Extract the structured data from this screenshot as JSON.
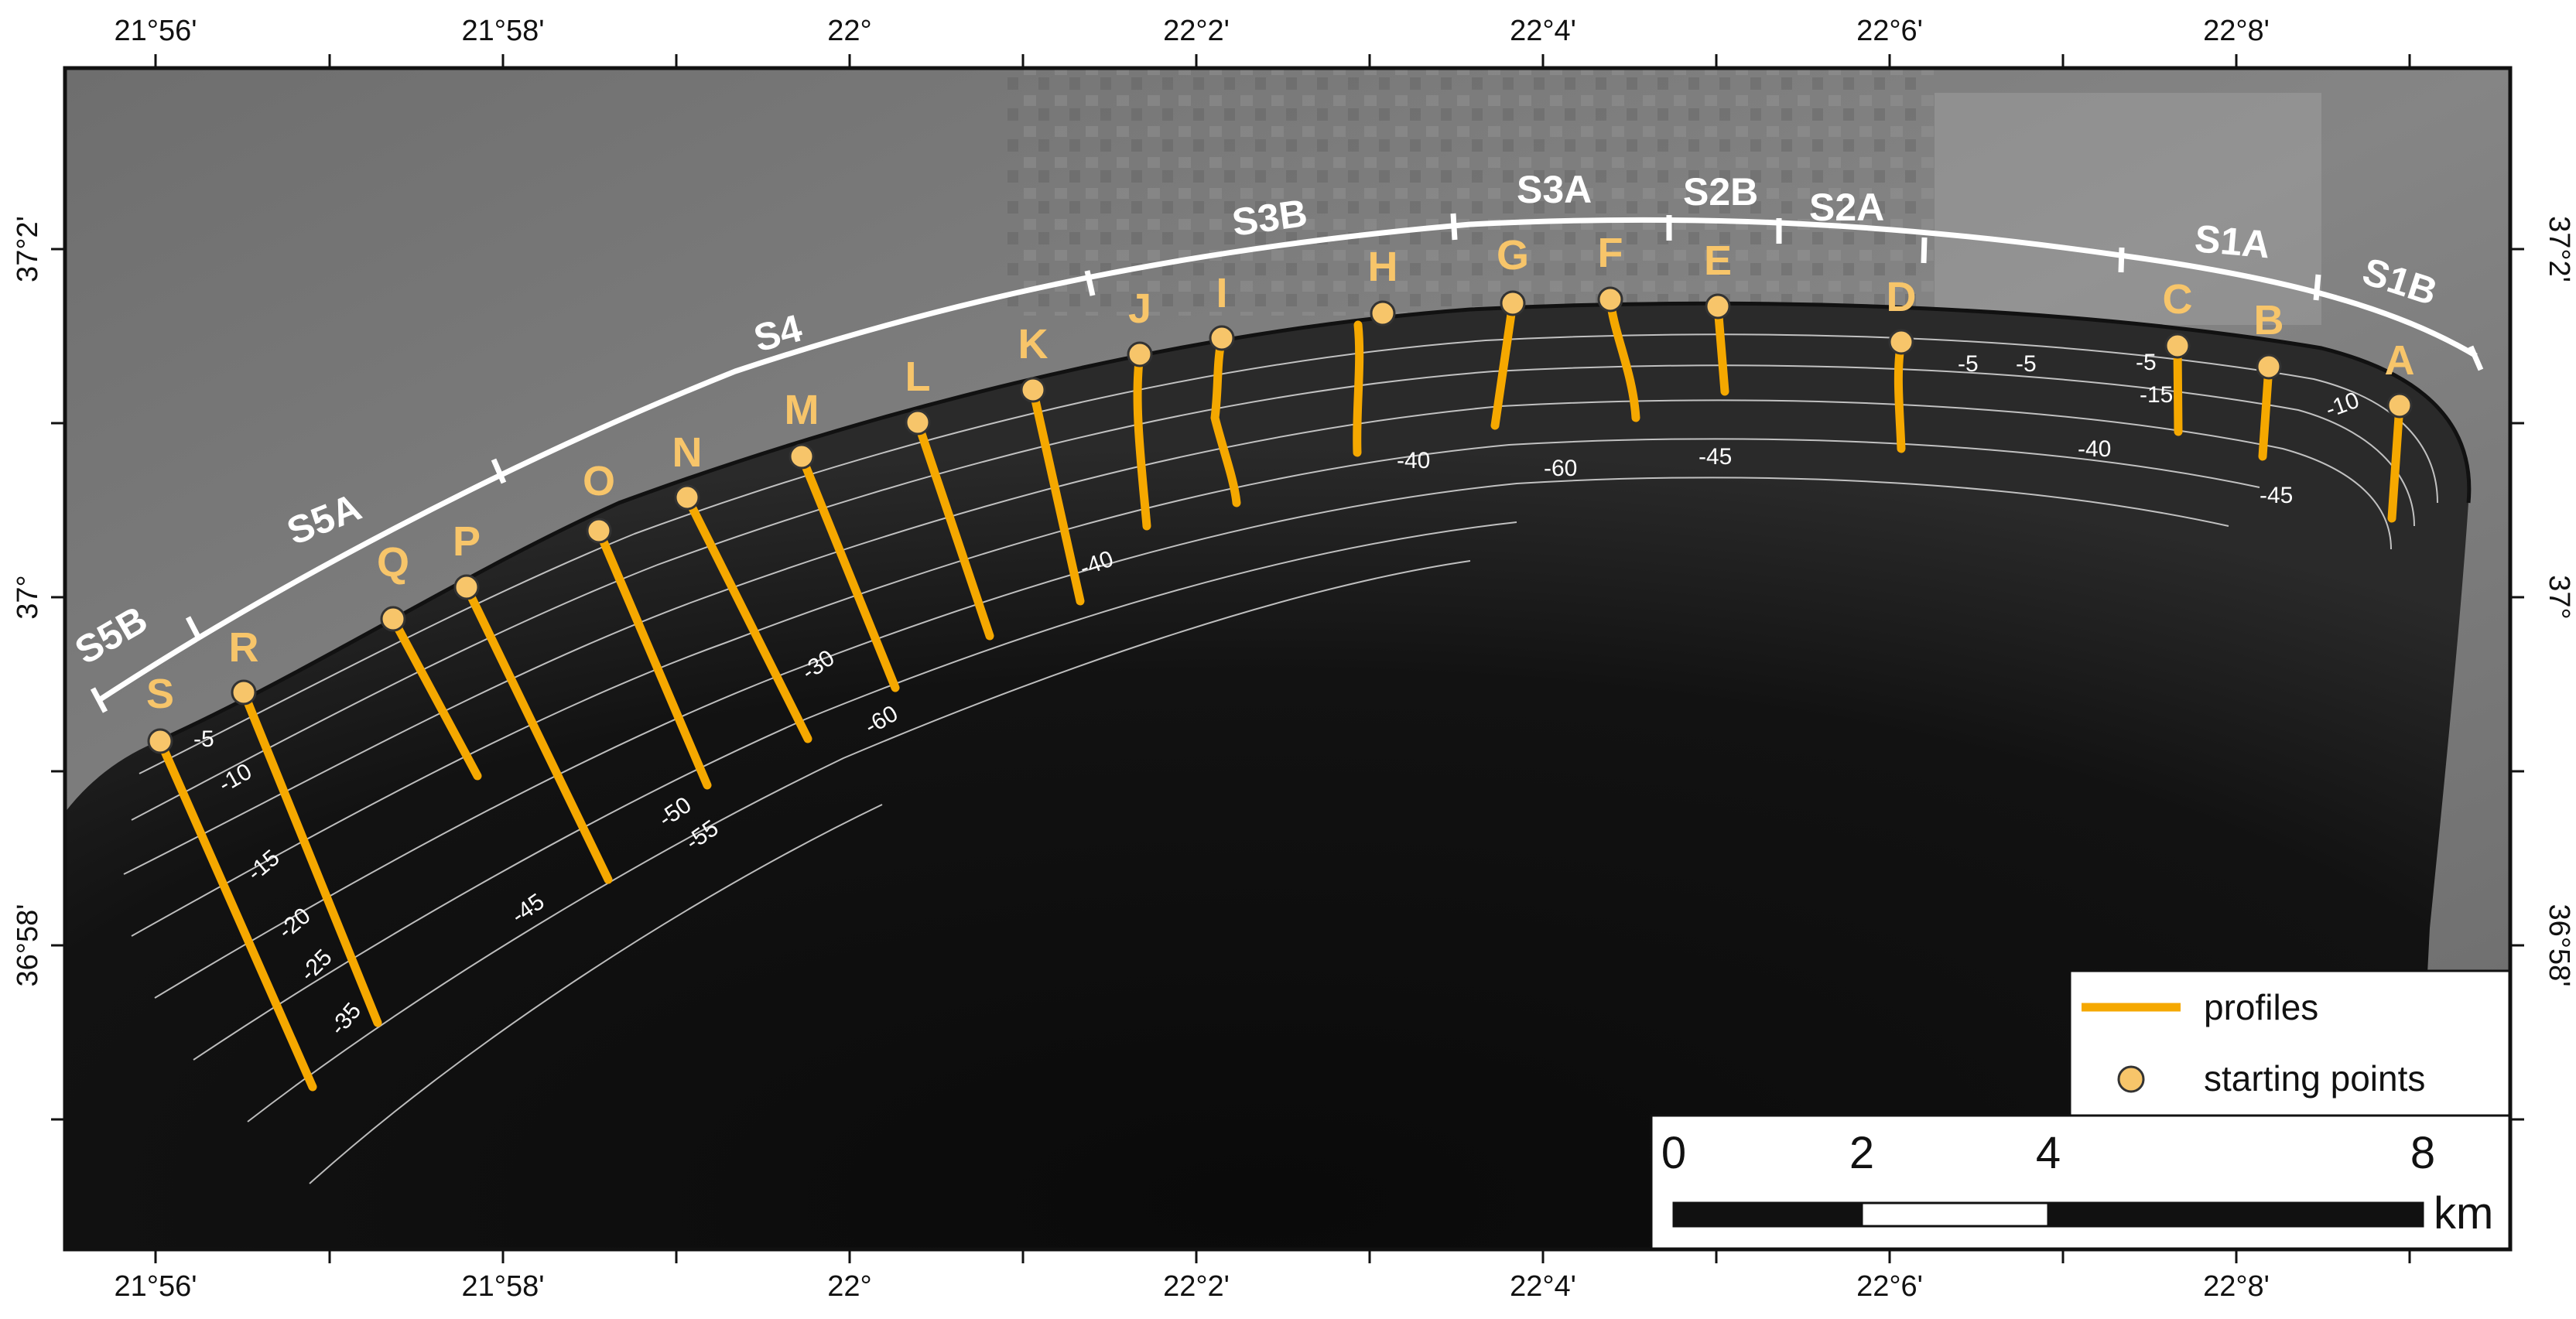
{
  "colors": {
    "profile": "#f5a800",
    "start_point_fill": "#f7c56a",
    "start_point_stroke": "#333333",
    "segment_line": "#ffffff",
    "sea": "#0e0e0e",
    "land": "#7a7a7a",
    "contour": "#dddddd"
  },
  "frame_labels": {
    "top": [
      "21°56'",
      "21°58'",
      "22°",
      "22°2'",
      "22°4'",
      "22°6'",
      "22°8'"
    ],
    "bottom": [
      "21°56'",
      "21°58'",
      "22°",
      "22°2'",
      "22°4'",
      "22°6'",
      "22°8'"
    ],
    "left": [
      "37°2'",
      "37°",
      "36°58'"
    ],
    "right": [
      "37°2'",
      "37°",
      "36°58'"
    ]
  },
  "segments": [
    "S5B",
    "S5A",
    "S4",
    "S3B",
    "S3A",
    "S2B",
    "S2A",
    "S1A",
    "S1B"
  ],
  "profiles": [
    "S",
    "R",
    "Q",
    "P",
    "O",
    "N",
    "M",
    "L",
    "K",
    "J",
    "I",
    "H",
    "G",
    "F",
    "E",
    "D",
    "C",
    "B",
    "A"
  ],
  "contour_labels": [
    "-5",
    "-10",
    "-15",
    "-20",
    "-25",
    "-35",
    "-45",
    "-50",
    "-55",
    "-30",
    "-60",
    "-40",
    "-40",
    "-60",
    "-45",
    "-5",
    "-5",
    "-5",
    "-15",
    "-10",
    "-40",
    "-45"
  ],
  "legend": {
    "profiles_label": "profiles",
    "starting_points_label": "starting points"
  },
  "scale_bar": {
    "ticks": [
      "0",
      "2",
      "4",
      "8"
    ],
    "unit": "km"
  }
}
